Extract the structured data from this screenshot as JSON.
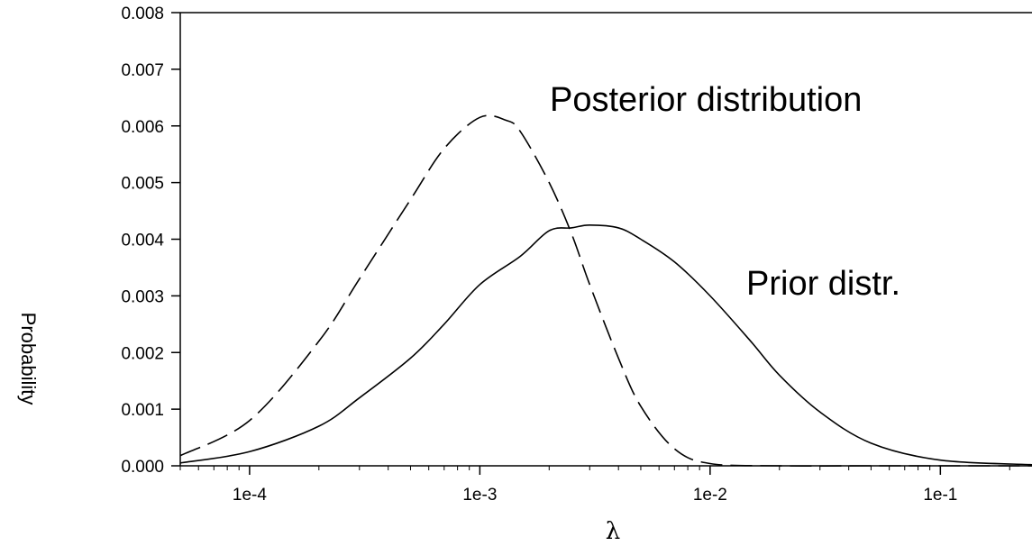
{
  "chart_data": {
    "type": "line",
    "title": "",
    "xlabel": "λ",
    "ylabel": "Probability",
    "x_scale": "log",
    "xlim": [
      5e-05,
      0.25
    ],
    "ylim": [
      0,
      0.008
    ],
    "grid": false,
    "x_ticks": [
      0.0001,
      0.001,
      0.01,
      0.1
    ],
    "x_tick_labels": [
      "1e-4",
      "1e-3",
      "1e-2",
      "1e-1"
    ],
    "y_ticks": [
      0,
      0.001,
      0.002,
      0.003,
      0.004,
      0.005,
      0.006,
      0.007,
      0.008
    ],
    "y_tick_labels": [
      "0.000",
      "0.001",
      "0.002",
      "0.003",
      "0.004",
      "0.005",
      "0.006",
      "0.007",
      "0.008"
    ],
    "series": [
      {
        "name": "Posterior distribution",
        "style": "dashed",
        "color": "#000000",
        "x": [
          5e-05,
          0.0001,
          0.0002,
          0.0003,
          0.0005,
          0.0007,
          0.001,
          0.0013,
          0.0015,
          0.002,
          0.0025,
          0.003,
          0.004,
          0.005,
          0.007,
          0.01,
          0.02,
          0.05,
          0.1,
          0.25
        ],
        "y": [
          0.00018,
          0.0008,
          0.0022,
          0.0033,
          0.0047,
          0.0056,
          0.00615,
          0.0061,
          0.0059,
          0.005,
          0.0041,
          0.0032,
          0.0019,
          0.00105,
          0.0003,
          4e-05,
          0.0,
          0.0,
          0.0,
          0.0
        ]
      },
      {
        "name": "Prior distr.",
        "style": "solid",
        "color": "#000000",
        "x": [
          5e-05,
          0.0001,
          0.0002,
          0.0003,
          0.0005,
          0.0007,
          0.001,
          0.0015,
          0.002,
          0.0025,
          0.003,
          0.004,
          0.005,
          0.007,
          0.01,
          0.015,
          0.02,
          0.03,
          0.05,
          0.1,
          0.25
        ],
        "y": [
          5e-05,
          0.00025,
          0.0007,
          0.0012,
          0.0019,
          0.0025,
          0.0032,
          0.0037,
          0.00415,
          0.0042,
          0.00425,
          0.0042,
          0.004,
          0.0036,
          0.003,
          0.0022,
          0.0016,
          0.00095,
          0.0004,
          0.0001,
          2e-05
        ]
      }
    ],
    "annotations": [
      {
        "text": "Posterior distribution"
      },
      {
        "text": "Prior distr."
      }
    ]
  }
}
